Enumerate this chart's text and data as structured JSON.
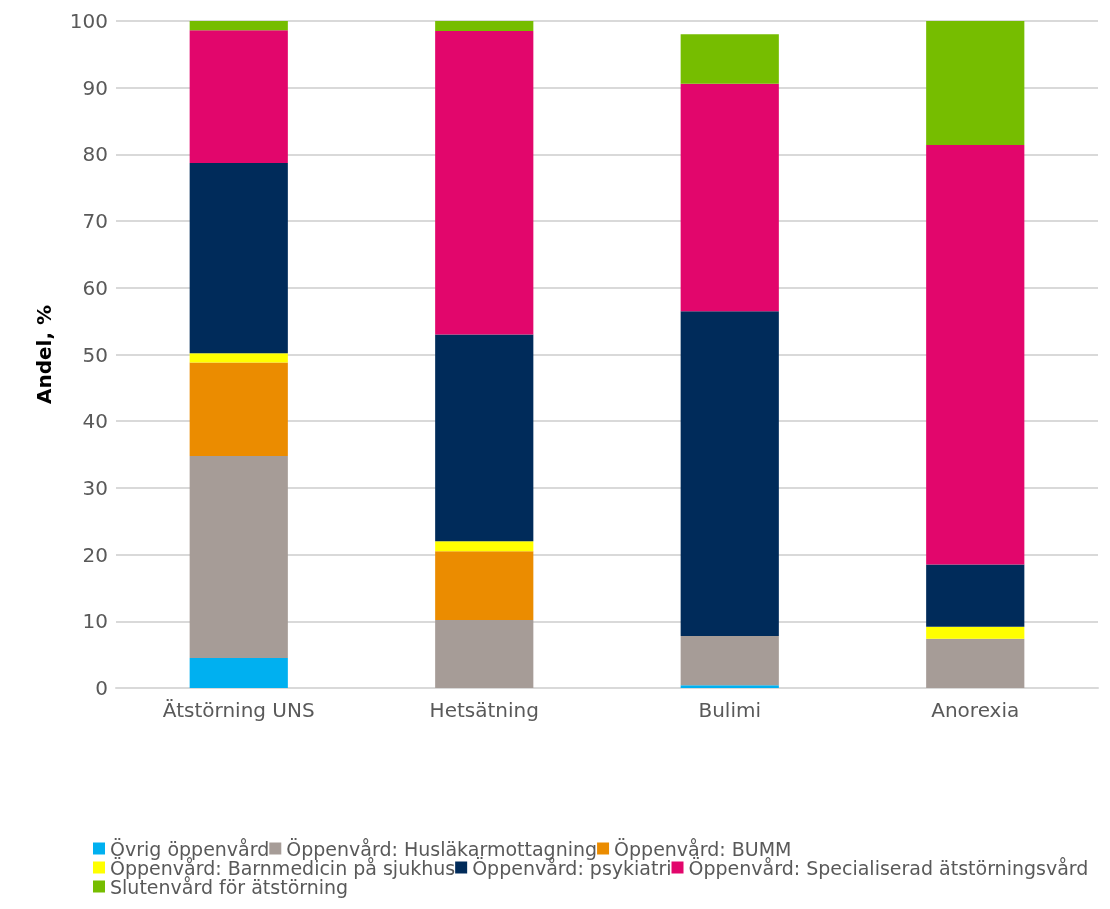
{
  "chart_data": {
    "type": "bar",
    "stacked": true,
    "ylabel": "Andel, %",
    "categories": [
      "Ätstörning UNS",
      "Hetsätning",
      "Bulimi",
      "Anorexia"
    ],
    "series": [
      {
        "name": "Övrig öppenvård",
        "color": "#00b0f0",
        "values": [
          4.5,
          0,
          0.4,
          0
        ]
      },
      {
        "name": "Öppenvård: Husläkarmottagning",
        "color": "#a69c97",
        "values": [
          30.3,
          10.2,
          7.4,
          7.4
        ]
      },
      {
        "name": "Öppenvård: BUMM",
        "color": "#eb8c00",
        "values": [
          14.0,
          10.3,
          0,
          0
        ]
      },
      {
        "name": "Öppenvård: Barnmedicin på sjukhus",
        "color": "#ffff00",
        "values": [
          1.4,
          1.5,
          0,
          1.8
        ]
      },
      {
        "name": "Öppenvård: psykiatri",
        "color": "#002b5a",
        "values": [
          28.5,
          31.0,
          48.7,
          9.3
        ]
      },
      {
        "name": "Öppenvård: Specialiserad ätstörningsvård",
        "color": "#e2066c",
        "values": [
          19.9,
          45.5,
          34.1,
          62.9
        ]
      },
      {
        "name": "Slutenvård för ätstörning",
        "color": "#76bd00",
        "values": [
          1.4,
          1.5,
          7.4,
          18.6
        ]
      }
    ],
    "ylim": [
      0,
      100
    ],
    "yticks": [
      0,
      10,
      20,
      30,
      40,
      50,
      60,
      70,
      80,
      90,
      100
    ],
    "grid": "y",
    "legend": "bottom"
  }
}
